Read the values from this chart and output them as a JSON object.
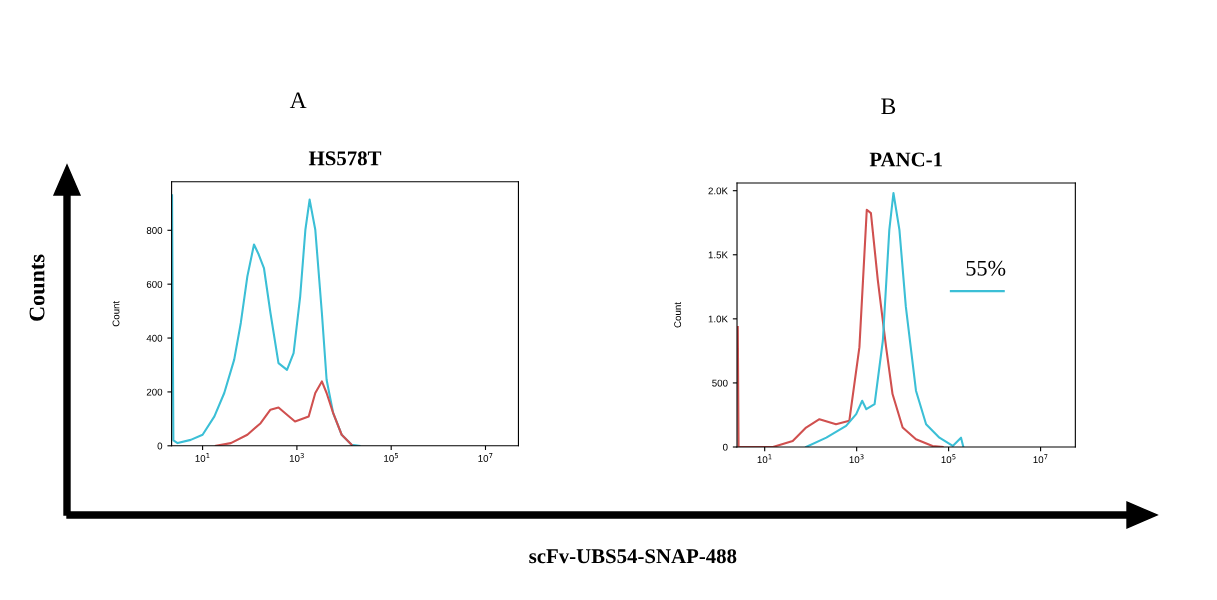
{
  "chart_data": [
    {
      "type": "line",
      "title": "HS578T",
      "ylabel": "Count",
      "log": "x",
      "xlim": [
        2.2,
        50000000
      ],
      "xticks": [
        {
          "value": 10,
          "label": "10$^{1}$"
        },
        {
          "value": 1000,
          "label": "10$^{3}$"
        },
        {
          "value": 100000,
          "label": "10$^{5}$"
        },
        {
          "value": 10000000,
          "label": "10$^{7}$"
        }
      ],
      "ylim": [
        0,
        980
      ],
      "yticks": [
        0,
        200,
        400,
        600,
        800
      ],
      "grid": false,
      "series": [
        {
          "color": "#3bbfd6",
          "x": [
            2.25,
            2.4,
            2.95,
            5.6,
            10,
            17.8,
            28.8,
            46.8,
            64.6,
            89,
            123,
            155,
            200,
            275,
            407,
            617,
            851,
            1175,
            1514,
            1862,
            2455,
            3388,
            4266,
            5888,
            8913,
            14454,
            21380
          ],
          "values": [
            930,
            20,
            10,
            22,
            41,
            109,
            196,
            320,
            456,
            629,
            747,
            710,
            660,
            493,
            307,
            282,
            344,
            555,
            802,
            914,
            802,
            493,
            245,
            121,
            41,
            4,
            0
          ]
        },
        {
          "color": "#d0504f",
          "x": [
            19.1,
            39.8,
            89,
            170,
            275,
            407,
            617,
            912,
            1778,
            2455,
            3388,
            4266,
            5888,
            8913,
            14454
          ],
          "values": [
            0,
            10,
            41,
            84,
            134,
            142,
            115,
            90,
            109,
            196,
            239,
            196,
            121,
            41,
            4
          ]
        }
      ],
      "annotations": [
        "A",
        "Counts",
        "scFv-UBS54-SNAP-488"
      ]
    },
    {
      "type": "line",
      "title": "PANC-1",
      "ylabel": "Count",
      "log": "x",
      "xlim": [
        2.5,
        57000000
      ],
      "xticks": [
        {
          "value": 10,
          "label": "10$^{1}$"
        },
        {
          "value": 1000,
          "label": "10$^{3}$"
        },
        {
          "value": 100000,
          "label": "10$^{5}$"
        },
        {
          "value": 10000000,
          "label": "10$^{7}$"
        }
      ],
      "ylim": [
        0,
        2060
      ],
      "yticks": [
        0,
        500,
        {
          "value": 1000,
          "label": "1.0K"
        },
        {
          "value": 1500,
          "label": "1.5K"
        },
        {
          "value": 2000,
          "label": "2.0K"
        }
      ],
      "grid": false,
      "series": [
        {
          "color": "#d0504f",
          "x": [
            2.6,
            2.7,
            15.1,
            40.7,
            79.4,
            155,
            355,
            692,
            1148,
            1660,
            2042,
            2884,
            4365,
            6026,
            10000,
            19500,
            44670,
            74130
          ],
          "values": [
            936,
            0,
            0,
            47,
            152,
            217,
            178,
            204,
            779,
            1851,
            1825,
            1302,
            779,
            413,
            152,
            60,
            8,
            0
          ]
        },
        {
          "color": "#3bbfd6",
          "x": [
            79.4,
            219,
            589,
            977,
            1318,
            1622,
            2455,
            3715,
            5129,
            6310,
            8511,
            11750,
            19500,
            32360,
            63100,
            123000,
            186000,
            209000
          ],
          "values": [
            0,
            73,
            165,
            256,
            361,
            295,
            335,
            831,
            1694,
            1982,
            1694,
            1093,
            439,
            178,
            73,
            8,
            73,
            0
          ]
        },
        {
          "color": "#3bbfd6",
          "x": [
            112000,
            1580000
          ],
          "values": [
            1216,
            1216
          ]
        }
      ],
      "annotations": [
        "B",
        "55%"
      ]
    }
  ]
}
